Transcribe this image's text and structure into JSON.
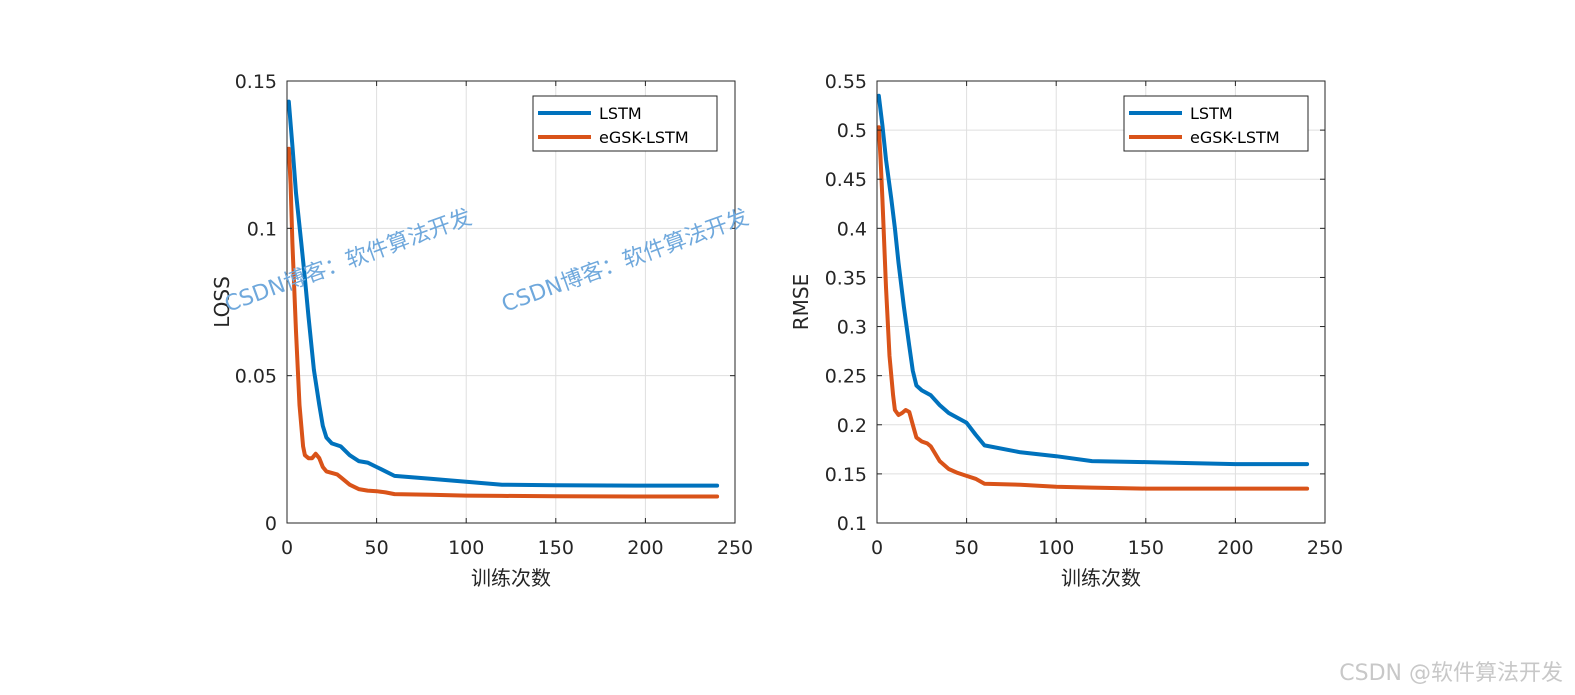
{
  "chart_data": [
    {
      "type": "line",
      "xlabel": "训练次数",
      "ylabel": "LOSS",
      "xlim": [
        0,
        250
      ],
      "ylim": [
        0,
        0.15
      ],
      "xticks": [
        0,
        50,
        100,
        150,
        200,
        250
      ],
      "yticks": [
        0,
        0.05,
        0.1,
        0.15
      ],
      "xtick_labels": [
        "0",
        "50",
        "100",
        "150",
        "200",
        "250"
      ],
      "ytick_labels": [
        "0",
        "0.05",
        "0.1",
        "0.15"
      ],
      "grid": true,
      "legend_position": "top-right",
      "series": [
        {
          "name": "LSTM",
          "color": "#0072BD",
          "x": [
            1,
            3,
            5,
            8,
            10,
            12,
            15,
            18,
            20,
            22,
            25,
            30,
            35,
            40,
            45,
            50,
            55,
            60,
            80,
            100,
            120,
            150,
            200,
            240
          ],
          "y": [
            0.143,
            0.128,
            0.112,
            0.095,
            0.083,
            0.07,
            0.052,
            0.04,
            0.033,
            0.029,
            0.027,
            0.026,
            0.023,
            0.021,
            0.0205,
            0.019,
            0.0175,
            0.016,
            0.015,
            0.014,
            0.013,
            0.0128,
            0.0127,
            0.0127
          ]
        },
        {
          "name": "eGSK-LSTM",
          "color": "#D95319",
          "x": [
            1,
            2,
            3,
            5,
            7,
            9,
            10,
            12,
            14,
            16,
            18,
            20,
            22,
            25,
            28,
            30,
            35,
            40,
            45,
            50,
            55,
            60,
            80,
            100,
            120,
            150,
            200,
            240
          ],
          "y": [
            0.127,
            0.115,
            0.095,
            0.065,
            0.04,
            0.026,
            0.023,
            0.022,
            0.022,
            0.0235,
            0.022,
            0.019,
            0.0175,
            0.017,
            0.0165,
            0.0155,
            0.013,
            0.0115,
            0.011,
            0.0108,
            0.0104,
            0.0098,
            0.0096,
            0.0093,
            0.0092,
            0.0091,
            0.009,
            0.009
          ]
        }
      ]
    },
    {
      "type": "line",
      "xlabel": "训练次数",
      "ylabel": "RMSE",
      "xlim": [
        0,
        250
      ],
      "ylim": [
        0.1,
        0.55
      ],
      "xticks": [
        0,
        50,
        100,
        150,
        200,
        250
      ],
      "yticks": [
        0.1,
        0.15,
        0.2,
        0.25,
        0.3,
        0.35,
        0.4,
        0.45,
        0.5,
        0.55
      ],
      "xtick_labels": [
        "0",
        "50",
        "100",
        "150",
        "200",
        "250"
      ],
      "ytick_labels": [
        "0.1",
        "0.15",
        "0.2",
        "0.25",
        "0.3",
        "0.35",
        "0.4",
        "0.45",
        "0.5",
        "0.55"
      ],
      "grid": true,
      "legend_position": "top-right",
      "series": [
        {
          "name": "LSTM",
          "color": "#0072BD",
          "x": [
            1,
            3,
            5,
            8,
            10,
            12,
            15,
            18,
            20,
            22,
            25,
            30,
            35,
            40,
            45,
            50,
            55,
            60,
            80,
            100,
            120,
            150,
            200,
            240
          ],
          "y": [
            0.535,
            0.505,
            0.47,
            0.43,
            0.4,
            0.365,
            0.32,
            0.28,
            0.255,
            0.24,
            0.235,
            0.23,
            0.22,
            0.212,
            0.207,
            0.202,
            0.19,
            0.179,
            0.172,
            0.168,
            0.163,
            0.162,
            0.16,
            0.16
          ]
        },
        {
          "name": "eGSK-LSTM",
          "color": "#D95319",
          "x": [
            1,
            2,
            3,
            5,
            7,
            9,
            10,
            12,
            14,
            16,
            18,
            20,
            22,
            25,
            28,
            30,
            35,
            40,
            45,
            50,
            55,
            60,
            80,
            100,
            120,
            150,
            200,
            240
          ],
          "y": [
            0.503,
            0.47,
            0.43,
            0.34,
            0.27,
            0.23,
            0.215,
            0.21,
            0.212,
            0.215,
            0.213,
            0.2,
            0.187,
            0.183,
            0.181,
            0.178,
            0.163,
            0.155,
            0.151,
            0.148,
            0.145,
            0.14,
            0.139,
            0.137,
            0.136,
            0.135,
            0.135,
            0.135
          ]
        }
      ]
    }
  ],
  "watermarks": {
    "overlay": [
      "CSDN博客：软件算法开发",
      "CSDN博客：软件算法开发"
    ],
    "footer": "CSDN @软件算法开发"
  }
}
